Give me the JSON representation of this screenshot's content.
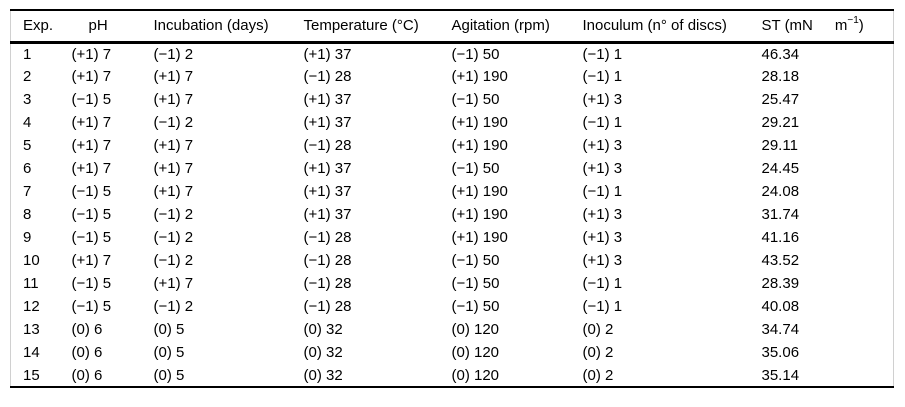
{
  "table": {
    "headers": {
      "exp": "Exp.",
      "ph": "pH",
      "incubation": "Incubation (days)",
      "temperature": "Temperature (°C)",
      "agitation": "Agitation (rpm)",
      "inoculum": "Inoculum (n° of discs)",
      "st_prefix": "ST (mN",
      "st_unit_base": "m",
      "st_unit_exponent": "−1",
      "st_suffix": ")"
    },
    "rows": [
      {
        "exp": "1",
        "ph": "(+1) 7",
        "incubation": "(−1) 2",
        "temperature": "(+1) 37",
        "agitation": "(−1) 50",
        "inoculum": "(−1) 1",
        "st": "46.34"
      },
      {
        "exp": "2",
        "ph": "(+1) 7",
        "incubation": "(+1) 7",
        "temperature": "(−1) 28",
        "agitation": "(+1) 190",
        "inoculum": "(−1) 1",
        "st": "28.18"
      },
      {
        "exp": "3",
        "ph": "(−1) 5",
        "incubation": "(+1) 7",
        "temperature": "(+1) 37",
        "agitation": "(−1) 50",
        "inoculum": "(+1) 3",
        "st": "25.47"
      },
      {
        "exp": "4",
        "ph": "(+1) 7",
        "incubation": "(−1) 2",
        "temperature": "(+1) 37",
        "agitation": "(+1) 190",
        "inoculum": "(−1) 1",
        "st": "29.21"
      },
      {
        "exp": "5",
        "ph": "(+1) 7",
        "incubation": "(+1) 7",
        "temperature": "(−1) 28",
        "agitation": "(+1) 190",
        "inoculum": "(+1) 3",
        "st": "29.11"
      },
      {
        "exp": "6",
        "ph": "(+1) 7",
        "incubation": "(+1) 7",
        "temperature": "(+1) 37",
        "agitation": "(−1) 50",
        "inoculum": "(+1) 3",
        "st": "24.45"
      },
      {
        "exp": "7",
        "ph": "(−1) 5",
        "incubation": "(+1) 7",
        "temperature": "(+1) 37",
        "agitation": "(+1) 190",
        "inoculum": "(−1) 1",
        "st": "24.08"
      },
      {
        "exp": "8",
        "ph": "(−1) 5",
        "incubation": "(−1) 2",
        "temperature": "(+1) 37",
        "agitation": "(+1) 190",
        "inoculum": "(+1) 3",
        "st": "31.74"
      },
      {
        "exp": "9",
        "ph": "(−1) 5",
        "incubation": "(−1) 2",
        "temperature": "(−1) 28",
        "agitation": "(+1) 190",
        "inoculum": "(+1) 3",
        "st": "41.16"
      },
      {
        "exp": "10",
        "ph": "(+1) 7",
        "incubation": "(−1) 2",
        "temperature": "(−1) 28",
        "agitation": "(−1) 50",
        "inoculum": "(+1) 3",
        "st": "43.52"
      },
      {
        "exp": "11",
        "ph": "(−1) 5",
        "incubation": "(+1) 7",
        "temperature": "(−1) 28",
        "agitation": "(−1) 50",
        "inoculum": "(−1) 1",
        "st": "28.39"
      },
      {
        "exp": "12",
        "ph": "(−1) 5",
        "incubation": "(−1) 2",
        "temperature": "(−1) 28",
        "agitation": "(−1) 50",
        "inoculum": "(−1) 1",
        "st": "40.08"
      },
      {
        "exp": "13",
        "ph": "(0) 6",
        "incubation": "(0) 5",
        "temperature": "(0) 32",
        "agitation": "(0) 120",
        "inoculum": "(0) 2",
        "st": "34.74"
      },
      {
        "exp": "14",
        "ph": "(0) 6",
        "incubation": "(0) 5",
        "temperature": "(0) 32",
        "agitation": "(0) 120",
        "inoculum": "(0) 2",
        "st": "35.06"
      },
      {
        "exp": "15",
        "ph": "(0) 6",
        "incubation": "(0) 5",
        "temperature": "(0) 32",
        "agitation": "(0) 120",
        "inoculum": "(0) 2",
        "st": "35.14"
      }
    ]
  },
  "chart_data": {
    "type": "table",
    "columns": [
      "Exp.",
      "pH",
      "Incubation (days)",
      "Temperature (°C)",
      "Agitation (rpm)",
      "Inoculum (n° of discs)",
      "ST (mN m−1)"
    ],
    "rows": [
      [
        "1",
        "(+1) 7",
        "(−1) 2",
        "(+1) 37",
        "(−1) 50",
        "(−1) 1",
        "46.34"
      ],
      [
        "2",
        "(+1) 7",
        "(+1) 7",
        "(−1) 28",
        "(+1) 190",
        "(−1) 1",
        "28.18"
      ],
      [
        "3",
        "(−1) 5",
        "(+1) 7",
        "(+1) 37",
        "(−1) 50",
        "(+1) 3",
        "25.47"
      ],
      [
        "4",
        "(+1) 7",
        "(−1) 2",
        "(+1) 37",
        "(+1) 190",
        "(−1) 1",
        "29.21"
      ],
      [
        "5",
        "(+1) 7",
        "(+1) 7",
        "(−1) 28",
        "(+1) 190",
        "(+1) 3",
        "29.11"
      ],
      [
        "6",
        "(+1) 7",
        "(+1) 7",
        "(+1) 37",
        "(−1) 50",
        "(+1) 3",
        "24.45"
      ],
      [
        "7",
        "(−1) 5",
        "(+1) 7",
        "(+1) 37",
        "(+1) 190",
        "(−1) 1",
        "24.08"
      ],
      [
        "8",
        "(−1) 5",
        "(−1) 2",
        "(+1) 37",
        "(+1) 190",
        "(+1) 3",
        "31.74"
      ],
      [
        "9",
        "(−1) 5",
        "(−1) 2",
        "(−1) 28",
        "(+1) 190",
        "(+1) 3",
        "41.16"
      ],
      [
        "10",
        "(+1) 7",
        "(−1) 2",
        "(−1) 28",
        "(−1) 50",
        "(+1) 3",
        "43.52"
      ],
      [
        "11",
        "(−1) 5",
        "(+1) 7",
        "(−1) 28",
        "(−1) 50",
        "(−1) 1",
        "28.39"
      ],
      [
        "12",
        "(−1) 5",
        "(−1) 2",
        "(−1) 28",
        "(−1) 50",
        "(−1) 1",
        "40.08"
      ],
      [
        "13",
        "(0) 6",
        "(0) 5",
        "(0) 32",
        "(0) 120",
        "(0) 2",
        "34.74"
      ],
      [
        "14",
        "(0) 6",
        "(0) 5",
        "(0) 32",
        "(0) 120",
        "(0) 2",
        "35.06"
      ],
      [
        "15",
        "(0) 6",
        "(0) 5",
        "(0) 32",
        "(0) 120",
        "(0) 2",
        "35.14"
      ]
    ],
    "colors": {
      "text": "#000000",
      "rule": "#000000",
      "edge": "#d0d0d0",
      "background": "#ffffff"
    }
  }
}
